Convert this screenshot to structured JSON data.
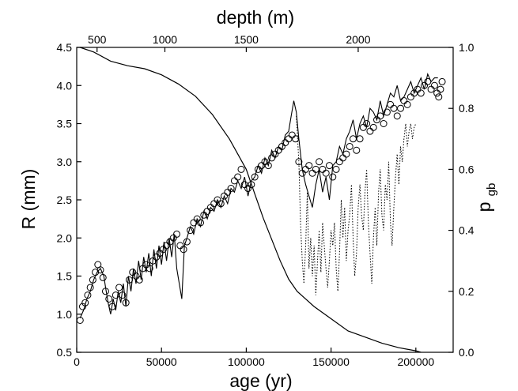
{
  "chart_data": {
    "type": "scatter",
    "title": "",
    "xlabel": "age (yr)",
    "ylabel": "R (mm)",
    "y2label_main": "p",
    "y2label_sub": "gb",
    "x2label": "depth (m)",
    "xlim": [
      0,
      222000
    ],
    "ylim": [
      0.5,
      4.5
    ],
    "y2lim": [
      0.0,
      1.0
    ],
    "x_ticks": [
      0,
      50000,
      100000,
      150000,
      200000
    ],
    "y_ticks": [
      "0.5",
      "1.0",
      "1.5",
      "2.0",
      "2.5",
      "3.0",
      "3.5",
      "4.0",
      "4.5"
    ],
    "y2_ticks": [
      "0.0",
      "0.2",
      "0.4",
      "0.6",
      "0.8",
      "1.0"
    ],
    "x2_ticks": [
      {
        "label": "500",
        "age": 12000
      },
      {
        "label": "1000",
        "age": 52000
      },
      {
        "label": "1500",
        "age": 100000
      },
      {
        "label": "2000",
        "age": 166000
      }
    ],
    "series": [
      {
        "kind": "circles",
        "x": [
          2000,
          3500,
          5000,
          6500,
          8000,
          9500,
          11000,
          12500,
          14000,
          15500,
          17000,
          19000,
          21000,
          23000,
          25000,
          27000,
          29000,
          31000,
          33000,
          35000,
          37000,
          39000,
          41000,
          43000,
          45000,
          47000,
          49000,
          51000,
          53000,
          55000,
          57000,
          59000,
          61000,
          63000,
          65000,
          67000,
          69000,
          71000,
          73000,
          75000,
          77000,
          79000,
          81000,
          83000,
          85000,
          87000,
          89000,
          91000,
          93000,
          95000,
          97000,
          99000,
          101000,
          103000,
          105000,
          107000,
          109000,
          111000,
          113000,
          115000,
          117000,
          119000,
          121000,
          123000,
          125000,
          127000,
          129000,
          131000,
          133000,
          135000,
          137000,
          139000,
          141000,
          143000,
          145000,
          147000,
          149000,
          151000,
          153000,
          155000,
          157000,
          159000,
          161000,
          163000,
          165000,
          167000,
          169000,
          171000,
          173000,
          175000,
          177000,
          179000,
          181000,
          183000,
          185000,
          187000,
          189000,
          191000,
          193000,
          195000,
          197000,
          199000,
          201000,
          203000,
          205000,
          207000,
          209000,
          211000,
          212500,
          213500,
          214500,
          215500
        ],
        "y": [
          0.92,
          1.1,
          1.15,
          1.25,
          1.35,
          1.45,
          1.55,
          1.65,
          1.58,
          1.48,
          1.3,
          1.2,
          1.1,
          1.25,
          1.35,
          1.25,
          1.15,
          1.45,
          1.55,
          1.5,
          1.45,
          1.6,
          1.65,
          1.6,
          1.7,
          1.75,
          1.8,
          1.85,
          1.9,
          1.95,
          2.0,
          2.05,
          1.9,
          1.85,
          1.95,
          2.1,
          2.2,
          2.25,
          2.2,
          2.3,
          2.35,
          2.4,
          2.45,
          2.5,
          2.45,
          2.55,
          2.6,
          2.65,
          2.75,
          2.8,
          2.9,
          2.7,
          2.65,
          2.7,
          2.8,
          2.9,
          2.95,
          3.0,
          2.95,
          3.05,
          3.1,
          3.15,
          3.2,
          3.25,
          3.3,
          3.35,
          3.3,
          3.0,
          2.85,
          2.9,
          2.95,
          2.85,
          2.9,
          3.0,
          2.9,
          2.85,
          2.95,
          2.8,
          2.9,
          3.0,
          3.05,
          3.1,
          3.2,
          3.3,
          3.15,
          3.3,
          3.45,
          3.5,
          3.4,
          3.45,
          3.55,
          3.6,
          3.5,
          3.65,
          3.75,
          3.7,
          3.6,
          3.7,
          3.8,
          3.75,
          3.85,
          3.9,
          3.95,
          3.9,
          4.0,
          4.05,
          3.95,
          4.0,
          3.9,
          3.85,
          3.95,
          4.05
        ]
      },
      {
        "kind": "solid",
        "x": [
          2000,
          4000,
          6000,
          8000,
          10000,
          12000,
          14000,
          16000,
          17000,
          18500,
          20000,
          21500,
          23000,
          24500,
          26000,
          27500,
          29000,
          30500,
          32000,
          33500,
          35000,
          36500,
          38000,
          39500,
          41000,
          42500,
          44000,
          45500,
          47000,
          48500,
          50000,
          51500,
          53000,
          54500,
          56000,
          57500,
          59000,
          60500,
          62000,
          63500,
          65000,
          67000,
          69000,
          71000,
          73000,
          75000,
          77000,
          79000,
          81000,
          83000,
          85000,
          87000,
          89000,
          91000,
          93000,
          95000,
          97000,
          99000,
          101000,
          103000,
          105000,
          107000,
          109000,
          111000,
          113000,
          115000,
          117000,
          119000,
          121000,
          123000,
          125000,
          126500,
          128000,
          129500,
          131000,
          133000,
          135000,
          137000,
          139000,
          141000,
          143000,
          145000,
          147000,
          149000,
          151000,
          153000,
          155000,
          157000,
          159000,
          161000,
          163000,
          165000,
          167000,
          169000,
          171000,
          173000,
          175000,
          177000,
          179000,
          181000,
          183000,
          185000,
          187000,
          189000,
          191000,
          193000,
          195000,
          197000,
          199000,
          201000,
          203000,
          205000,
          207000,
          209000,
          211000,
          213000
        ],
        "y": [
          0.95,
          1.05,
          1.2,
          1.3,
          1.45,
          1.55,
          1.6,
          1.5,
          1.35,
          1.15,
          1.0,
          1.2,
          1.05,
          1.3,
          1.15,
          1.4,
          1.1,
          1.5,
          1.3,
          1.6,
          1.4,
          1.7,
          1.45,
          1.75,
          1.55,
          1.8,
          1.5,
          1.85,
          1.6,
          1.9,
          1.65,
          1.95,
          1.7,
          2.0,
          1.75,
          2.05,
          1.6,
          1.4,
          1.2,
          1.9,
          2.0,
          2.15,
          2.05,
          2.25,
          2.15,
          2.35,
          2.25,
          2.4,
          2.35,
          2.5,
          2.4,
          2.55,
          2.45,
          2.65,
          2.6,
          2.75,
          2.65,
          2.8,
          2.55,
          2.75,
          2.8,
          2.95,
          2.85,
          3.05,
          2.95,
          3.15,
          3.05,
          3.2,
          3.15,
          3.35,
          3.4,
          3.6,
          3.8,
          3.65,
          3.3,
          2.9,
          2.7,
          2.55,
          2.4,
          2.7,
          2.9,
          2.6,
          2.8,
          2.5,
          2.95,
          3.0,
          3.2,
          3.1,
          3.3,
          3.4,
          3.55,
          3.3,
          3.5,
          3.6,
          3.45,
          3.7,
          3.65,
          3.55,
          3.8,
          3.6,
          3.75,
          3.9,
          3.85,
          4.0,
          3.8,
          3.85,
          3.95,
          4.05,
          3.9,
          4.0,
          4.1,
          3.95,
          4.15,
          4.05,
          4.1,
          4.1
        ]
      },
      {
        "kind": "dotted",
        "x": [
          129500,
          131000,
          132000,
          133000,
          134000,
          135000,
          136000,
          137000,
          138000,
          139000,
          140000,
          141000,
          142000,
          143000,
          144000,
          145000,
          146000,
          147000,
          148000,
          149000,
          150000,
          151000,
          152000,
          153000,
          154000,
          155000,
          156000,
          157000,
          158000,
          159000,
          160000,
          161000,
          162000,
          163000,
          164000,
          165000,
          166000,
          167000,
          168000,
          169000,
          170000,
          171000,
          172000,
          173000,
          174000,
          175000,
          176000,
          177000,
          178000,
          179000,
          180000,
          181000,
          182000,
          183000,
          184000,
          185000,
          186000,
          187000,
          188000,
          189000,
          190000,
          191000,
          192000,
          193000,
          194000,
          195000,
          196000,
          197000,
          198000,
          199000,
          200000
        ],
        "y": [
          3.6,
          3.0,
          2.2,
          1.7,
          1.4,
          1.9,
          2.6,
          1.6,
          2.0,
          1.5,
          1.9,
          1.25,
          1.7,
          2.1,
          1.55,
          2.2,
          1.9,
          1.6,
          1.35,
          1.7,
          2.1,
          1.9,
          2.2,
          1.6,
          1.3,
          1.8,
          2.5,
          2.0,
          2.4,
          1.7,
          2.1,
          2.3,
          2.7,
          2.0,
          1.5,
          1.8,
          2.4,
          2.7,
          2.3,
          2.1,
          2.6,
          2.9,
          2.2,
          1.8,
          1.4,
          2.0,
          2.4,
          1.9,
          2.6,
          2.9,
          2.3,
          2.1,
          2.7,
          2.5,
          3.0,
          2.2,
          1.9,
          2.4,
          2.8,
          3.1,
          2.7,
          3.2,
          3.0,
          3.3,
          3.5,
          3.2,
          3.4,
          3.5,
          3.3,
          3.45,
          3.5
        ]
      },
      {
        "kind": "pgb-curve",
        "axis": "y2",
        "x": [
          2000,
          10000,
          20000,
          30000,
          40000,
          50000,
          60000,
          70000,
          80000,
          90000,
          95000,
          100000,
          105000,
          110000,
          115000,
          120000,
          125000,
          130000,
          140000,
          150000,
          160000,
          170000,
          180000,
          190000,
          200000,
          203000
        ],
        "y": [
          1.0,
          0.985,
          0.955,
          0.94,
          0.93,
          0.91,
          0.88,
          0.84,
          0.78,
          0.7,
          0.65,
          0.6,
          0.52,
          0.44,
          0.37,
          0.3,
          0.24,
          0.2,
          0.15,
          0.11,
          0.07,
          0.05,
          0.03,
          0.015,
          0.005,
          0.0
        ]
      }
    ]
  }
}
